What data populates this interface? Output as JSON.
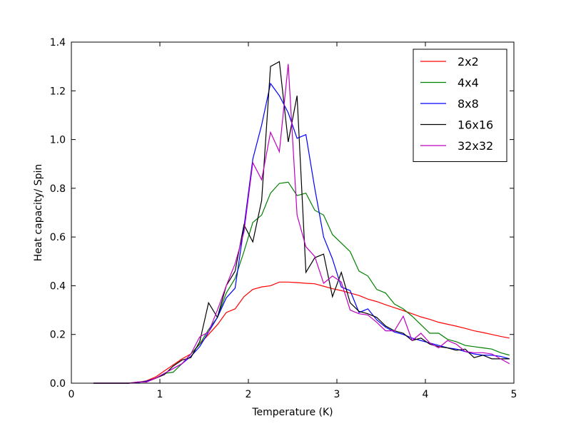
{
  "chart_data": {
    "type": "line",
    "title": "",
    "xlabel": "Temperature (K)",
    "ylabel": "Heat capacity/ Spin",
    "xlim": [
      0,
      5
    ],
    "ylim": [
      0.0,
      1.4
    ],
    "xticks": [
      0,
      1,
      2,
      3,
      4,
      5
    ],
    "xtick_labels": [
      "0",
      "1",
      "2",
      "3",
      "4",
      "5"
    ],
    "yticks": [
      0.0,
      0.2,
      0.4,
      0.6,
      0.8,
      1.0,
      1.2,
      1.4
    ],
    "ytick_labels": [
      "0.0",
      "0.2",
      "0.4",
      "0.6",
      "0.8",
      "1.0",
      "1.2",
      "1.4"
    ],
    "grid": false,
    "legend_position": "top-right",
    "series": [
      {
        "name": "2x2",
        "color": "#ff0000",
        "x": [
          0.25,
          0.45,
          0.65,
          0.75,
          0.85,
          0.95,
          1.05,
          1.15,
          1.25,
          1.35,
          1.45,
          1.55,
          1.65,
          1.75,
          1.85,
          1.95,
          2.05,
          2.15,
          2.25,
          2.35,
          2.45,
          2.55,
          2.65,
          2.75,
          2.85,
          2.95,
          3.05,
          3.15,
          3.25,
          3.35,
          3.45,
          3.55,
          3.65,
          3.75,
          3.85,
          3.95,
          4.05,
          4.15,
          4.25,
          4.35,
          4.45,
          4.55,
          4.65,
          4.75,
          4.85,
          4.95
        ],
        "y": [
          0.0,
          0.0,
          0.0,
          0.003,
          0.01,
          0.025,
          0.05,
          0.075,
          0.1,
          0.12,
          0.16,
          0.2,
          0.24,
          0.29,
          0.305,
          0.355,
          0.385,
          0.395,
          0.4,
          0.415,
          0.415,
          0.413,
          0.41,
          0.408,
          0.398,
          0.388,
          0.38,
          0.37,
          0.36,
          0.345,
          0.335,
          0.322,
          0.31,
          0.298,
          0.285,
          0.272,
          0.262,
          0.25,
          0.242,
          0.234,
          0.225,
          0.215,
          0.208,
          0.2,
          0.192,
          0.185
        ]
      },
      {
        "name": "4x4",
        "color": "#008000",
        "x": [
          0.25,
          0.45,
          0.65,
          0.75,
          0.85,
          0.95,
          1.05,
          1.15,
          1.25,
          1.35,
          1.45,
          1.55,
          1.65,
          1.75,
          1.85,
          1.95,
          2.05,
          2.15,
          2.25,
          2.35,
          2.45,
          2.55,
          2.65,
          2.75,
          2.85,
          2.95,
          3.05,
          3.15,
          3.25,
          3.35,
          3.45,
          3.55,
          3.65,
          3.75,
          3.85,
          3.95,
          4.05,
          4.15,
          4.25,
          4.35,
          4.45,
          4.55,
          4.65,
          4.75,
          4.85,
          4.95
        ],
        "y": [
          0.0,
          0.0,
          0.0,
          0.003,
          0.008,
          0.02,
          0.04,
          0.045,
          0.08,
          0.12,
          0.16,
          0.22,
          0.27,
          0.37,
          0.43,
          0.54,
          0.66,
          0.69,
          0.78,
          0.82,
          0.825,
          0.77,
          0.78,
          0.71,
          0.69,
          0.61,
          0.575,
          0.54,
          0.46,
          0.44,
          0.385,
          0.37,
          0.325,
          0.305,
          0.275,
          0.24,
          0.205,
          0.205,
          0.18,
          0.17,
          0.155,
          0.15,
          0.145,
          0.14,
          0.125,
          0.115
        ]
      },
      {
        "name": "8x8",
        "color": "#0000ff",
        "x": [
          0.25,
          0.45,
          0.65,
          0.75,
          0.85,
          0.95,
          1.05,
          1.15,
          1.25,
          1.35,
          1.45,
          1.55,
          1.65,
          1.75,
          1.85,
          1.95,
          2.05,
          2.15,
          2.25,
          2.35,
          2.45,
          2.55,
          2.65,
          2.75,
          2.85,
          2.95,
          3.05,
          3.15,
          3.25,
          3.35,
          3.45,
          3.55,
          3.65,
          3.75,
          3.85,
          3.95,
          4.05,
          4.15,
          4.25,
          4.35,
          4.45,
          4.55,
          4.65,
          4.75,
          4.85,
          4.95
        ],
        "y": [
          0.0,
          0.0,
          0.0,
          0.003,
          0.008,
          0.02,
          0.04,
          0.06,
          0.08,
          0.11,
          0.15,
          0.21,
          0.27,
          0.35,
          0.39,
          0.64,
          0.92,
          1.06,
          1.23,
          1.18,
          1.11,
          1.005,
          1.02,
          0.8,
          0.6,
          0.51,
          0.395,
          0.38,
          0.29,
          0.305,
          0.26,
          0.23,
          0.21,
          0.2,
          0.185,
          0.175,
          0.165,
          0.155,
          0.145,
          0.14,
          0.13,
          0.12,
          0.115,
          0.115,
          0.11,
          0.1
        ]
      },
      {
        "name": "16x16",
        "color": "#000000",
        "x": [
          0.25,
          0.45,
          0.65,
          0.75,
          0.85,
          0.95,
          1.05,
          1.15,
          1.25,
          1.35,
          1.45,
          1.55,
          1.65,
          1.75,
          1.85,
          1.95,
          2.05,
          2.15,
          2.25,
          2.35,
          2.45,
          2.55,
          2.65,
          2.75,
          2.85,
          2.95,
          3.05,
          3.15,
          3.25,
          3.35,
          3.45,
          3.55,
          3.65,
          3.75,
          3.85,
          3.95,
          4.05,
          4.15,
          4.25,
          4.35,
          4.45,
          4.55,
          4.65,
          4.75,
          4.85,
          4.95
        ],
        "y": [
          0.0,
          0.0,
          0.0,
          0.005,
          0.005,
          0.02,
          0.035,
          0.07,
          0.095,
          0.105,
          0.17,
          0.33,
          0.27,
          0.4,
          0.46,
          0.65,
          0.58,
          0.75,
          1.3,
          1.32,
          0.99,
          1.18,
          0.455,
          0.515,
          0.53,
          0.355,
          0.455,
          0.33,
          0.295,
          0.285,
          0.27,
          0.235,
          0.215,
          0.205,
          0.175,
          0.185,
          0.16,
          0.15,
          0.145,
          0.135,
          0.14,
          0.105,
          0.115,
          0.1,
          0.1,
          0.1
        ]
      },
      {
        "name": "32x32",
        "color": "#bf00bf",
        "x": [
          0.25,
          0.45,
          0.65,
          0.75,
          0.85,
          0.95,
          1.05,
          1.15,
          1.25,
          1.35,
          1.45,
          1.55,
          1.65,
          1.75,
          1.85,
          1.95,
          2.05,
          2.15,
          2.25,
          2.35,
          2.45,
          2.55,
          2.65,
          2.75,
          2.85,
          2.95,
          3.05,
          3.15,
          3.25,
          3.35,
          3.45,
          3.55,
          3.65,
          3.75,
          3.85,
          3.95,
          4.05,
          4.15,
          4.25,
          4.35,
          4.45,
          4.55,
          4.65,
          4.75,
          4.85,
          4.95
        ],
        "y": [
          0.0,
          0.0,
          0.0,
          0.005,
          0.005,
          0.02,
          0.04,
          0.06,
          0.08,
          0.12,
          0.19,
          0.21,
          0.3,
          0.4,
          0.49,
          0.62,
          0.905,
          0.835,
          1.03,
          0.95,
          1.31,
          0.69,
          0.56,
          0.52,
          0.41,
          0.44,
          0.415,
          0.3,
          0.285,
          0.28,
          0.25,
          0.215,
          0.215,
          0.275,
          0.175,
          0.205,
          0.165,
          0.145,
          0.175,
          0.16,
          0.13,
          0.125,
          0.125,
          0.12,
          0.1,
          0.08
        ]
      }
    ]
  }
}
